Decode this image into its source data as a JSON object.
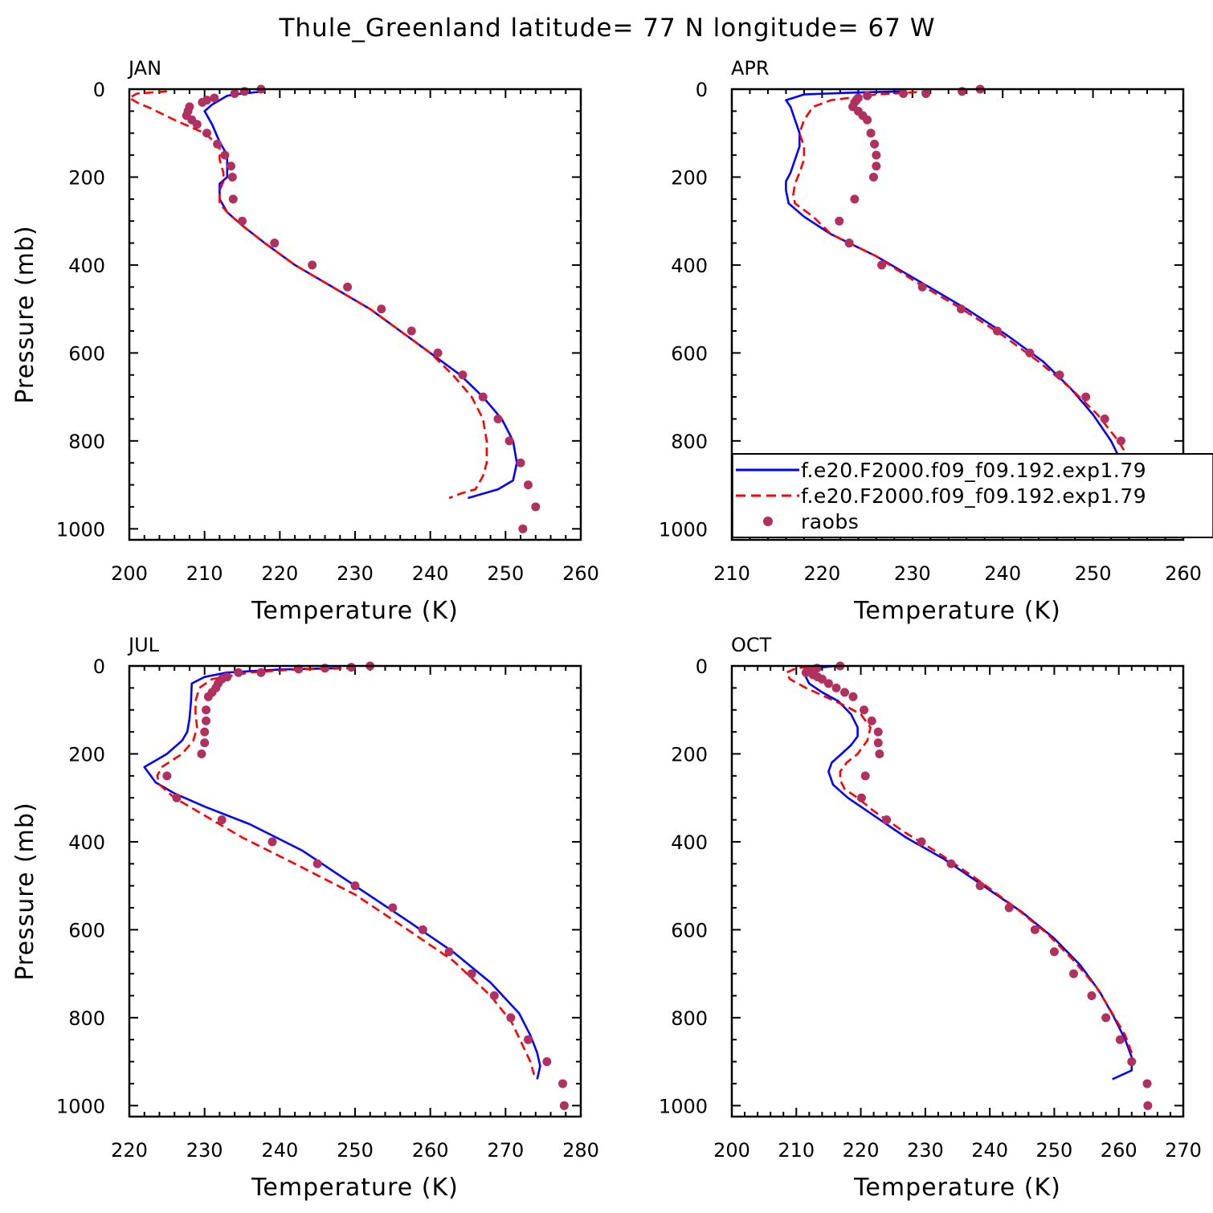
{
  "title": "Thule_Greenland  latitude= 77 N longitude= 67 W",
  "colors": {
    "model1": "#0000ff",
    "model2": "#ff0000",
    "obs": "#b03060"
  },
  "legend": {
    "placement": "panel-APR-bottom",
    "entries": [
      {
        "label": "f.e20.F2000.f09_f09.192.exp1.79",
        "style": "solid",
        "color": "#0000ff"
      },
      {
        "label": "f.e20.F2000.f09_f09.192.exp1.79",
        "style": "dashed",
        "color": "#ff0000"
      },
      {
        "label": "raobs",
        "style": "marker",
        "color": "#b03060"
      }
    ]
  },
  "chart_data": [
    {
      "type": "line",
      "title": "JAN",
      "xlabel": "Temperature (K)",
      "ylabel": "Pressure (mb)",
      "xlim": [
        200,
        260
      ],
      "ylim": [
        1025,
        0
      ],
      "xticks": [
        200,
        210,
        220,
        230,
        240,
        250,
        260
      ],
      "yticks": [
        0,
        200,
        400,
        600,
        800,
        1000
      ],
      "series": [
        {
          "style": "solid",
          "color": "#0000ff",
          "x": [
            218,
            215,
            213,
            212,
            211,
            210,
            211,
            212,
            213,
            213,
            213,
            212,
            212,
            212,
            213,
            215,
            218,
            222,
            227,
            232,
            236,
            240,
            244,
            247,
            249.5,
            251,
            251.5,
            251,
            249,
            245
          ],
          "y": [
            5,
            10,
            15,
            25,
            35,
            50,
            80,
            120,
            150,
            180,
            200,
            215,
            230,
            250,
            280,
            310,
            350,
            400,
            450,
            500,
            550,
            600,
            650,
            700,
            750,
            800,
            850,
            890,
            910,
            930
          ]
        },
        {
          "style": "dashed",
          "color": "#ff0000",
          "x": [
            205,
            201,
            200,
            201,
            203,
            206,
            210,
            212,
            212,
            212.5,
            212.5,
            212,
            212,
            212,
            213,
            215,
            218,
            222,
            227,
            232,
            236,
            240,
            243,
            245.5,
            247,
            247.5,
            247.5,
            247,
            246,
            244,
            242.5
          ],
          "y": [
            5,
            10,
            20,
            30,
            45,
            70,
            100,
            130,
            160,
            190,
            210,
            230,
            250,
            260,
            280,
            310,
            350,
            400,
            450,
            500,
            550,
            600,
            650,
            700,
            750,
            800,
            850,
            880,
            910,
            920,
            930
          ]
        },
        {
          "style": "marker",
          "color": "#b03060",
          "x": [
            217.5,
            215.3,
            214.0,
            211.3,
            210.3,
            209.7,
            208.0,
            207.8,
            207.6,
            208.3,
            209.0,
            210.3,
            211.7,
            212.7,
            213.5,
            213.7,
            213.8,
            215.0,
            219.3,
            224.3,
            229.0,
            233.5,
            237.5,
            241.0,
            244.3,
            247.0,
            249.0,
            250.5,
            252.0,
            253.0,
            254.0,
            252.3
          ],
          "y": [
            0,
            5,
            10,
            20,
            25,
            30,
            40,
            50,
            60,
            70,
            80,
            100,
            125,
            150,
            175,
            200,
            250,
            300,
            350,
            400,
            450,
            500,
            550,
            600,
            650,
            700,
            750,
            800,
            850,
            900,
            950,
            1000
          ]
        }
      ]
    },
    {
      "type": "line",
      "title": "APR",
      "xlabel": "Temperature (K)",
      "ylabel": "",
      "xlim": [
        210,
        260
      ],
      "ylim": [
        1025,
        0
      ],
      "xticks": [
        210,
        220,
        230,
        240,
        250,
        260
      ],
      "yticks": [
        0,
        200,
        400,
        600,
        800,
        1000
      ],
      "series": [
        {
          "style": "solid",
          "color": "#0000ff",
          "x": [
            229,
            223,
            218,
            216,
            216.5,
            217,
            217.5,
            217.5,
            217,
            216.5,
            216,
            216,
            216.3,
            218,
            221,
            226,
            231,
            236,
            240.5,
            244.5,
            247.5,
            250,
            252,
            253.2,
            253.8,
            254,
            254,
            254,
            252.5
          ],
          "y": [
            5,
            8,
            12,
            25,
            40,
            70,
            100,
            130,
            160,
            190,
            210,
            230,
            260,
            290,
            330,
            380,
            440,
            500,
            560,
            620,
            680,
            740,
            800,
            850,
            880,
            900,
            910,
            920,
            930
          ]
        },
        {
          "style": "dashed",
          "color": "#ff0000",
          "x": [
            232,
            226,
            221,
            219,
            218,
            217.5,
            218,
            218,
            217.5,
            217,
            216.8,
            217,
            219,
            221,
            226,
            230.5,
            235.5,
            240,
            244,
            247.5,
            250.5,
            252.8,
            254.3,
            255,
            255.3,
            255,
            254,
            253
          ],
          "y": [
            5,
            12,
            25,
            40,
            70,
            100,
            130,
            160,
            190,
            215,
            240,
            260,
            290,
            330,
            380,
            440,
            500,
            560,
            620,
            680,
            740,
            800,
            850,
            880,
            900,
            915,
            925,
            930
          ]
        },
        {
          "style": "marker",
          "color": "#b03060",
          "x": [
            237.5,
            235.5,
            231.5,
            229.0,
            225.0,
            224.0,
            223.8,
            223.6,
            223.4,
            224.0,
            224.5,
            225.0,
            225.4,
            225.8,
            226.0,
            226.0,
            225.7,
            223.6,
            221.9,
            223.0,
            226.6,
            231.1,
            235.4,
            239.4,
            243.0,
            246.3,
            249.2,
            251.3,
            253.1,
            254.5,
            255.8,
            257.3,
            257.3
          ],
          "y": [
            0,
            5,
            10,
            10,
            15,
            20,
            25,
            30,
            40,
            50,
            60,
            70,
            100,
            125,
            150,
            175,
            200,
            250,
            300,
            350,
            400,
            450,
            500,
            550,
            600,
            650,
            700,
            750,
            800,
            850,
            900,
            950,
            1000
          ]
        }
      ]
    },
    {
      "type": "line",
      "title": "JUL",
      "xlabel": "Temperature (K)",
      "ylabel": "Pressure (mb)",
      "xlim": [
        220,
        280
      ],
      "ylim": [
        1025,
        0
      ],
      "xticks": [
        220,
        230,
        240,
        250,
        260,
        270,
        280
      ],
      "yticks": [
        0,
        200,
        400,
        600,
        800,
        1000
      ],
      "series": [
        {
          "style": "solid",
          "color": "#0000ff",
          "x": [
            248,
            240,
            233,
            230,
            228.3,
            228.2,
            228,
            227.7,
            227,
            225,
            222,
            223.5,
            226,
            230,
            236,
            243,
            250,
            257,
            263,
            268,
            271.8,
            273.3,
            274.2,
            274.6,
            274.2
          ],
          "y": [
            5,
            8,
            15,
            25,
            40,
            80,
            120,
            150,
            170,
            200,
            230,
            265,
            290,
            320,
            360,
            420,
            500,
            580,
            650,
            720,
            790,
            840,
            880,
            910,
            940
          ]
        },
        {
          "style": "dashed",
          "color": "#ff0000",
          "x": [
            250,
            242,
            236,
            231,
            229.3,
            228.8,
            228.8,
            229,
            228.5,
            227,
            224.3,
            223.7,
            224,
            226,
            230,
            235,
            242,
            250,
            257,
            263,
            268,
            270.8,
            272.2,
            273.3,
            273.8
          ],
          "y": [
            5,
            8,
            15,
            30,
            50,
            80,
            110,
            140,
            170,
            200,
            230,
            250,
            270,
            300,
            340,
            390,
            450,
            520,
            600,
            670,
            750,
            810,
            860,
            900,
            930
          ]
        },
        {
          "style": "marker",
          "color": "#b03060",
          "x": [
            252.0,
            249.5,
            246.0,
            242.5,
            237.5,
            234.5,
            233.0,
            232.3,
            231.8,
            231.5,
            231.0,
            230.5,
            230.2,
            230.2,
            230.0,
            230.0,
            229.6,
            225.0,
            226.3,
            232.3,
            239.0,
            245.0,
            250.0,
            255.0,
            259.0,
            262.5,
            265.5,
            268.5,
            270.7,
            273.0,
            275.5,
            277.6,
            277.8
          ],
          "y": [
            0,
            3,
            5,
            7,
            15,
            15,
            25,
            30,
            40,
            50,
            60,
            70,
            100,
            125,
            150,
            175,
            200,
            250,
            300,
            350,
            400,
            450,
            500,
            550,
            600,
            650,
            700,
            750,
            800,
            850,
            900,
            950,
            1000
          ]
        }
      ]
    },
    {
      "type": "line",
      "title": "OCT",
      "xlabel": "Temperature (K)",
      "ylabel": "",
      "xlim": [
        200,
        270
      ],
      "ylim": [
        1025,
        0
      ],
      "xticks": [
        200,
        210,
        220,
        230,
        240,
        250,
        260,
        270
      ],
      "yticks": [
        0,
        200,
        400,
        600,
        800,
        1000
      ],
      "series": [
        {
          "style": "solid",
          "color": "#0000ff",
          "x": [
            216,
            213,
            211.5,
            211.3,
            212,
            214,
            216.5,
            218.5,
            219.5,
            219.5,
            218.5,
            217,
            215.5,
            215,
            215.7,
            218,
            222,
            227,
            233,
            239,
            245,
            250,
            254,
            257,
            259.3,
            261,
            262,
            262,
            259
          ],
          "y": [
            0,
            5,
            10,
            20,
            40,
            60,
            80,
            110,
            140,
            160,
            180,
            200,
            220,
            240,
            270,
            300,
            340,
            390,
            440,
            500,
            560,
            620,
            680,
            740,
            800,
            850,
            890,
            920,
            940
          ]
        },
        {
          "style": "dashed",
          "color": "#ff0000",
          "x": [
            214,
            210,
            208.5,
            209,
            211.5,
            214.5,
            217.5,
            220,
            221.5,
            221,
            219.5,
            217.8,
            216.8,
            216.8,
            217.5,
            219.5,
            222,
            227,
            232.5,
            238.5,
            244,
            249,
            253,
            256.5,
            259,
            261,
            262,
            262
          ],
          "y": [
            0,
            5,
            15,
            30,
            50,
            70,
            90,
            110,
            140,
            170,
            200,
            220,
            240,
            260,
            280,
            300,
            330,
            380,
            430,
            490,
            550,
            610,
            670,
            730,
            790,
            840,
            880,
            910
          ]
        },
        {
          "style": "marker",
          "color": "#b03060",
          "x": [
            216.8,
            213.2,
            212.2,
            211.5,
            212.6,
            213.3,
            214.0,
            215.0,
            216.2,
            217.5,
            218.8,
            220.5,
            221.7,
            222.7,
            222.7,
            222.9,
            220.7,
            220.1,
            224.0,
            229.4,
            234.0,
            238.5,
            243.0,
            247.0,
            250.0,
            253.0,
            255.8,
            258.0,
            260.2,
            262.0,
            264.4,
            264.5
          ],
          "y": [
            0,
            5,
            10,
            15,
            20,
            25,
            30,
            40,
            50,
            60,
            70,
            100,
            125,
            150,
            175,
            200,
            250,
            300,
            350,
            400,
            450,
            500,
            550,
            600,
            650,
            700,
            750,
            800,
            850,
            900,
            950,
            1000
          ]
        }
      ]
    }
  ]
}
